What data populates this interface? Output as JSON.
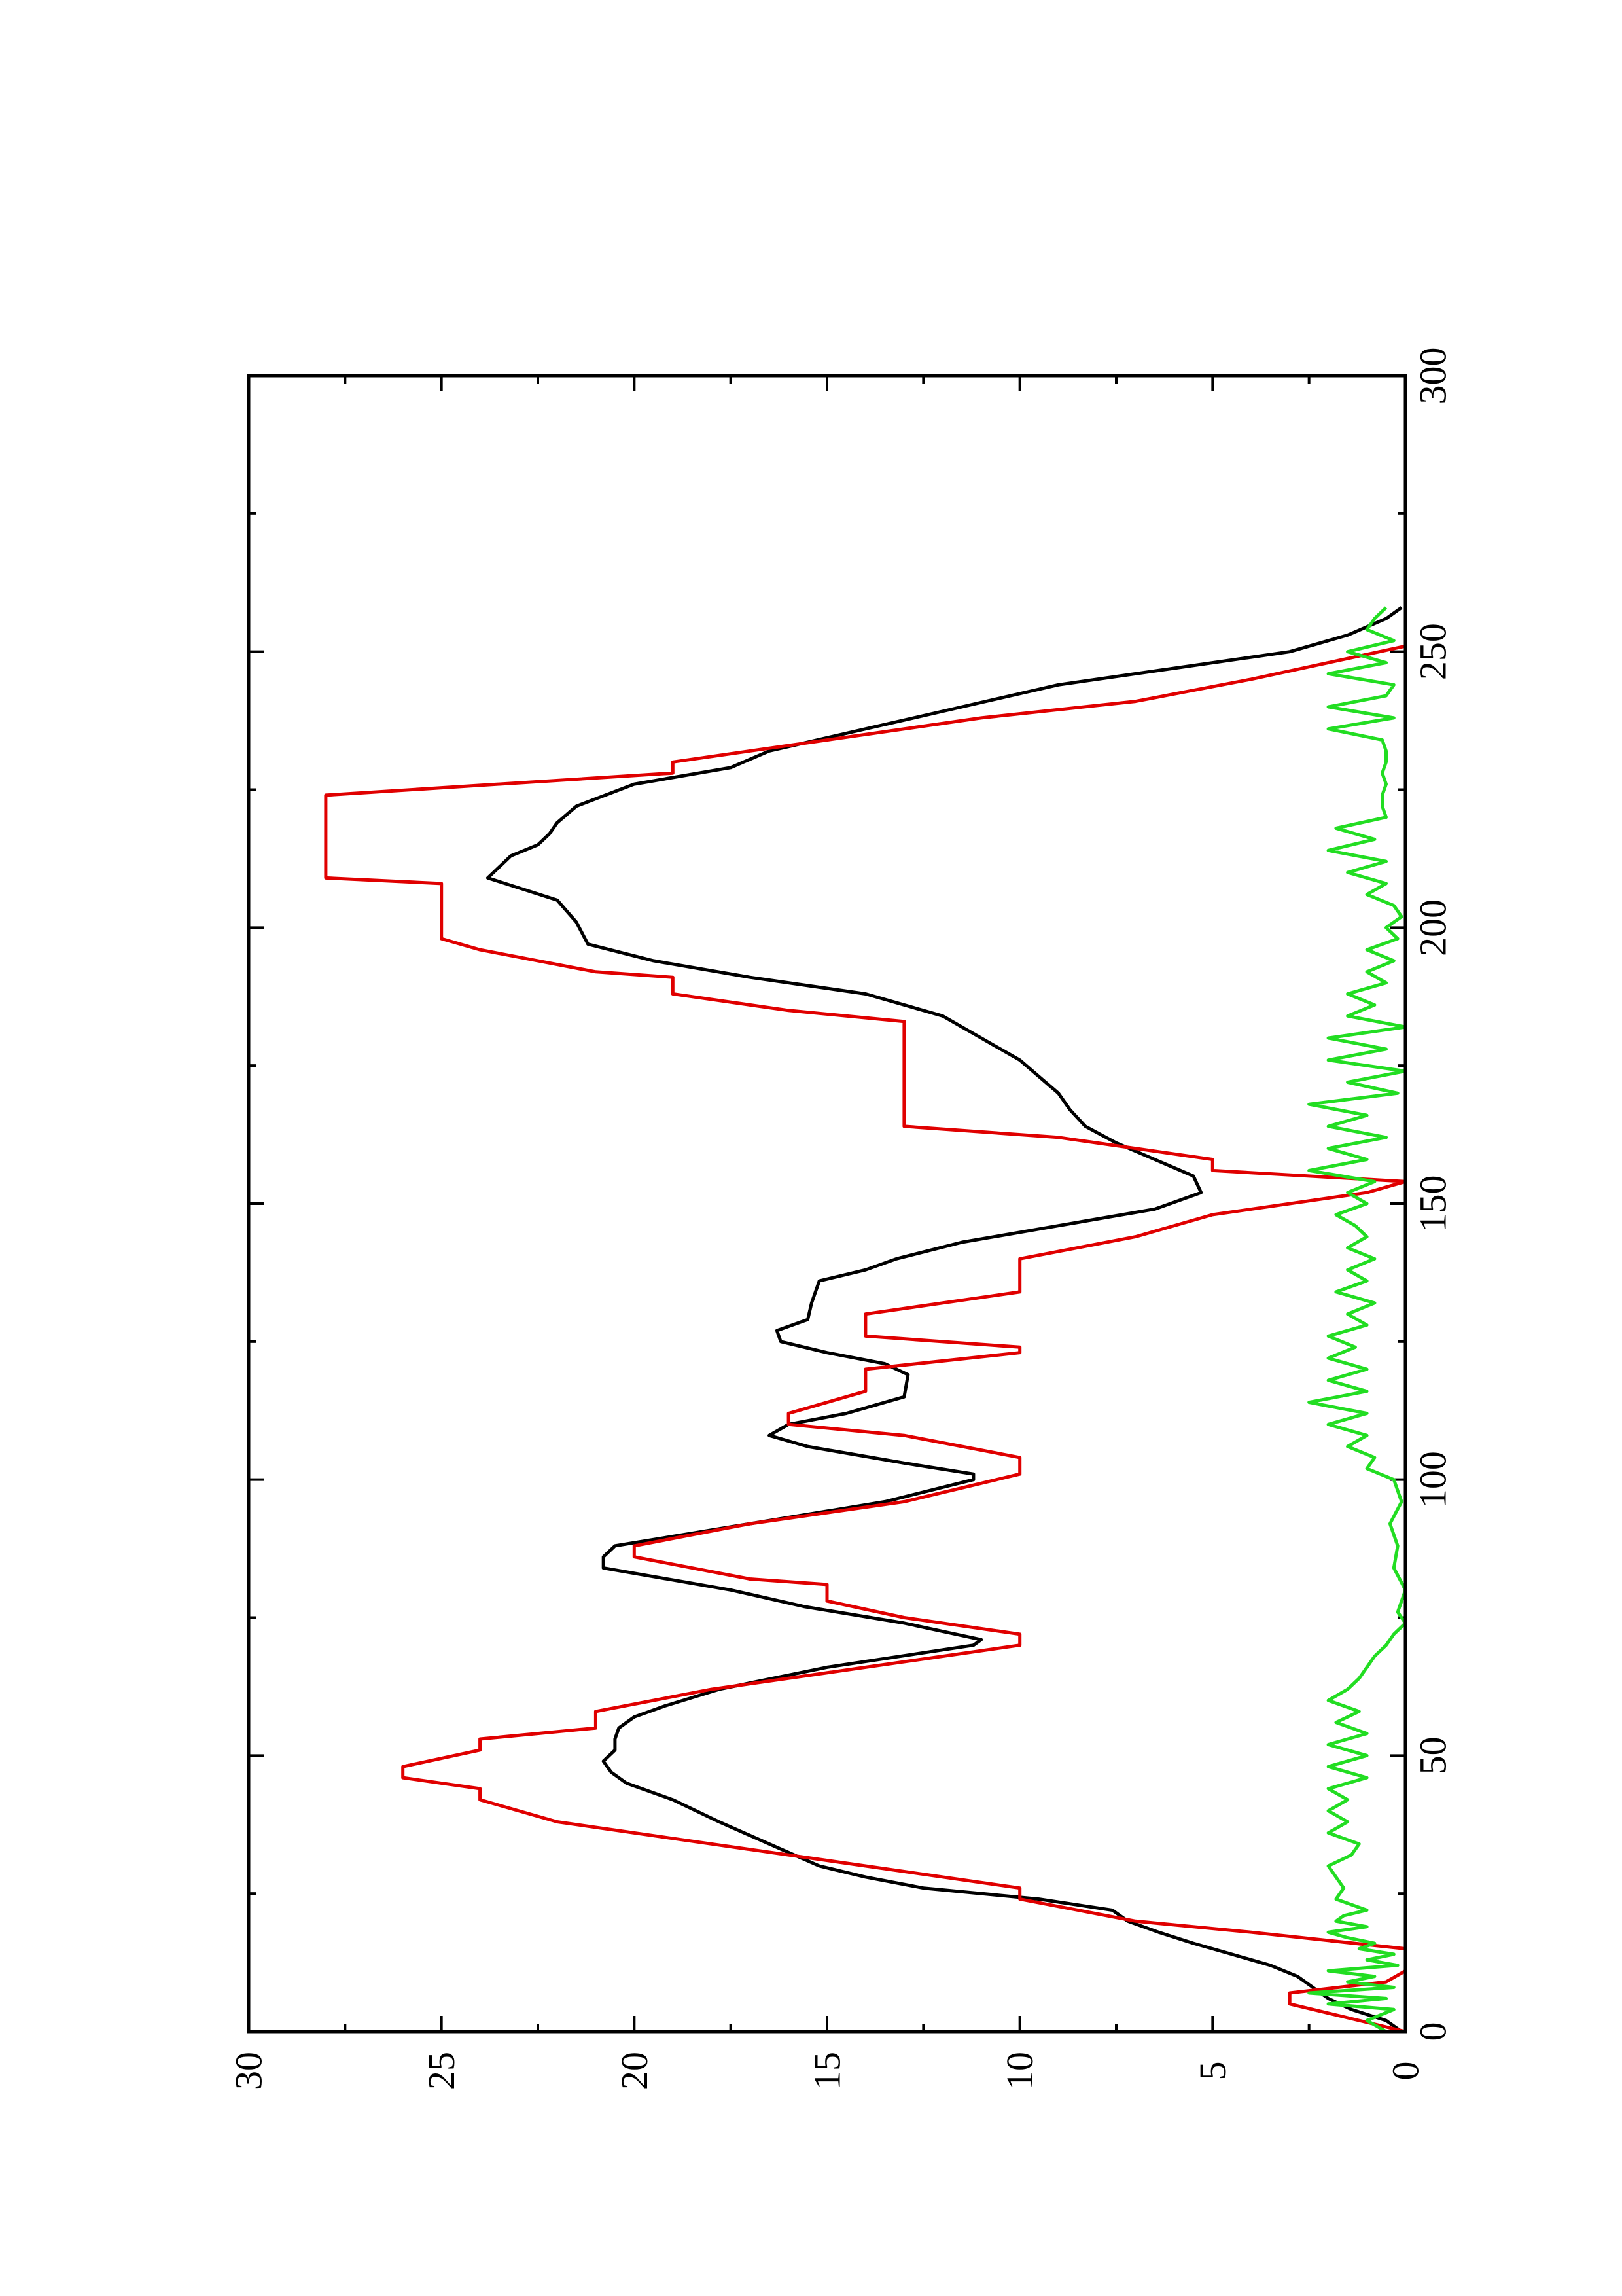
{
  "chart_data": {
    "type": "line",
    "orientation": "page rotated 90 degrees counter-clockwise",
    "title": "",
    "xlabel": "",
    "ylabel": "",
    "xlim": [
      0,
      300
    ],
    "ylim": [
      0,
      30
    ],
    "x_ticks": [
      "0",
      "50",
      "100",
      "150",
      "200",
      "250",
      "300"
    ],
    "y_ticks": [
      "0",
      "5",
      "10",
      "15",
      "20",
      "25",
      "30"
    ],
    "grid": false,
    "legend": "none",
    "series": [
      {
        "color": "#000000",
        "x": [
          0,
          2,
          4,
          6,
          8,
          10,
          12,
          14,
          16,
          18,
          20,
          22,
          24,
          26,
          28,
          30,
          34,
          38,
          42,
          45,
          47,
          49,
          51,
          53,
          55,
          57,
          59,
          62,
          66,
          70,
          71,
          74,
          77,
          80,
          84,
          86,
          88,
          92,
          96,
          100,
          101,
          103,
          106,
          108,
          110,
          112,
          115,
          119,
          121,
          123,
          125,
          127,
          129,
          132,
          136,
          138,
          140,
          143,
          146,
          149,
          152,
          155,
          158,
          161,
          164,
          167,
          170,
          173,
          176,
          180,
          184,
          188,
          191,
          194,
          197,
          201,
          205,
          209,
          211,
          213,
          215,
          217,
          219,
          222,
          226,
          229,
          232,
          236,
          240,
          244,
          247,
          250,
          253,
          256,
          258
        ],
        "values": [
          0.1,
          0.5,
          1.4,
          2.0,
          2.4,
          2.8,
          3.5,
          4.5,
          5.5,
          6.4,
          7.2,
          7.6,
          9.5,
          12.5,
          14.0,
          15.2,
          16.5,
          17.8,
          19.0,
          20.2,
          20.6,
          20.8,
          20.5,
          20.5,
          20.4,
          20.0,
          19.2,
          17.8,
          15.0,
          11.2,
          11.0,
          13.0,
          15.6,
          17.5,
          20.8,
          20.8,
          20.5,
          17.0,
          13.5,
          11.2,
          11.2,
          13.0,
          15.5,
          16.5,
          16.0,
          14.5,
          13.0,
          12.9,
          13.5,
          15.0,
          16.2,
          16.3,
          15.5,
          15.4,
          15.2,
          14.0,
          13.2,
          11.5,
          9.0,
          6.5,
          5.3,
          5.5,
          6.5,
          7.5,
          8.3,
          8.7,
          9.0,
          9.5,
          10.0,
          11.0,
          12.0,
          14.0,
          17.0,
          19.5,
          21.2,
          21.5,
          22.0,
          23.8,
          23.5,
          23.2,
          22.5,
          22.2,
          22.0,
          21.5,
          20.0,
          17.5,
          16.5,
          14.0,
          11.5,
          9.0,
          6.0,
          3.0,
          1.5,
          0.5,
          0.1
        ]
      },
      {
        "color": "#e00000",
        "x": [
          0,
          5,
          7,
          9,
          11,
          13,
          15,
          18,
          20,
          24,
          26,
          30,
          34,
          38,
          42,
          44,
          46,
          48,
          51,
          53,
          55,
          58,
          62,
          66,
          70,
          72,
          75,
          78,
          81,
          82,
          86,
          88,
          92,
          96,
          101,
          104,
          108,
          110,
          112,
          116,
          120,
          123,
          124,
          126,
          130,
          134,
          138,
          140,
          144,
          148,
          152,
          154,
          156,
          158,
          162,
          164,
          166,
          170,
          174,
          178,
          183,
          185,
          188,
          191,
          192,
          196,
          198,
          202,
          206,
          208,
          209,
          212,
          215,
          218,
          221,
          224,
          228,
          230,
          234,
          238,
          241,
          245,
          248,
          251
        ],
        "values": [
          0.0,
          3.0,
          3.0,
          0.5,
          0.0,
          0.0,
          0.0,
          4.0,
          7.0,
          10.0,
          10.0,
          14.0,
          18.0,
          22.0,
          24.0,
          24.0,
          26.0,
          26.0,
          24.0,
          24.0,
          21.0,
          21.0,
          18.0,
          14.0,
          10.0,
          10.0,
          13.0,
          15.0,
          15.0,
          17.0,
          20.0,
          20.0,
          17.0,
          13.0,
          10.0,
          10.0,
          13.0,
          16.0,
          16.0,
          14.0,
          14.0,
          10.0,
          10.0,
          14.0,
          14.0,
          10.0,
          10.0,
          10.0,
          7.0,
          5.0,
          1.0,
          0.0,
          5.0,
          5.0,
          9.0,
          13.0,
          13.0,
          13.0,
          13.0,
          13.0,
          13.0,
          16.0,
          19.0,
          19.0,
          21.0,
          24.0,
          25.0,
          25.0,
          25.0,
          25.0,
          28.0,
          28.0,
          28.0,
          28.0,
          28.0,
          28.0,
          19.0,
          19.0,
          15.0,
          11.0,
          7.0,
          4.0,
          2.0,
          0.0
        ]
      },
      {
        "color": "#22dd22",
        "x": [
          0,
          2,
          4,
          5,
          6,
          7,
          8,
          9,
          10,
          11,
          12,
          13,
          14,
          15,
          16,
          17,
          18,
          19,
          20,
          21,
          22,
          24,
          26,
          28,
          30,
          32,
          34,
          36,
          38,
          40,
          42,
          44,
          46,
          48,
          50,
          52,
          54,
          56,
          58,
          60,
          62,
          64,
          66,
          68,
          70,
          72,
          74,
          76,
          80,
          84,
          88,
          92,
          96,
          100,
          102,
          104,
          106,
          108,
          110,
          112,
          114,
          116,
          118,
          120,
          122,
          124,
          126,
          128,
          130,
          132,
          134,
          136,
          138,
          140,
          142,
          144,
          146,
          148,
          150,
          152,
          154,
          156,
          158,
          160,
          162,
          164,
          166,
          168,
          170,
          172,
          174,
          176,
          178,
          180,
          182,
          184,
          186,
          188,
          190,
          192,
          194,
          196,
          198,
          200,
          202,
          204,
          206,
          208,
          210,
          212,
          214,
          216,
          218,
          220,
          222,
          224,
          226,
          228,
          230,
          232,
          234,
          236,
          238,
          240,
          242,
          244,
          246,
          248,
          250,
          252,
          254,
          256,
          258
        ],
        "values": [
          0.5,
          1.0,
          0.3,
          2.0,
          0.5,
          2.5,
          0.3,
          1.5,
          0.8,
          2.0,
          0.2,
          1.0,
          0.3,
          1.2,
          0.8,
          1.5,
          2.0,
          1.0,
          1.8,
          1.6,
          1.0,
          1.8,
          1.6,
          1.8,
          2.0,
          1.4,
          1.2,
          2.0,
          1.5,
          2.0,
          1.5,
          2.0,
          1.0,
          2.0,
          1.0,
          2.0,
          1.0,
          1.8,
          1.2,
          2.0,
          1.5,
          1.2,
          1.0,
          0.8,
          0.5,
          0.3,
          0.0,
          0.2,
          0.0,
          0.3,
          0.2,
          0.4,
          0.1,
          0.3,
          1.0,
          0.8,
          1.5,
          1.0,
          2.0,
          1.0,
          2.5,
          1.0,
          2.0,
          1.0,
          2.0,
          1.3,
          2.0,
          1.0,
          1.5,
          0.8,
          1.8,
          1.0,
          1.5,
          0.8,
          1.5,
          1.0,
          1.3,
          1.8,
          1.0,
          1.5,
          0.8,
          2.5,
          1.0,
          2.0,
          0.5,
          2.0,
          1.0,
          2.5,
          0.2,
          1.5,
          0.0,
          2.0,
          0.5,
          2.0,
          0.0,
          1.5,
          0.8,
          1.5,
          0.5,
          1.0,
          0.3,
          1.0,
          0.2,
          0.5,
          0.1,
          0.3,
          1.0,
          0.5,
          1.5,
          0.5,
          2.0,
          0.8,
          1.8,
          0.5,
          0.6,
          0.6,
          0.5,
          0.6,
          0.5,
          0.5,
          0.6,
          2.0,
          0.3,
          2.0,
          0.5,
          0.3,
          2.0,
          0.5,
          1.5,
          0.3,
          1.0,
          0.8,
          0.5
        ]
      }
    ]
  }
}
